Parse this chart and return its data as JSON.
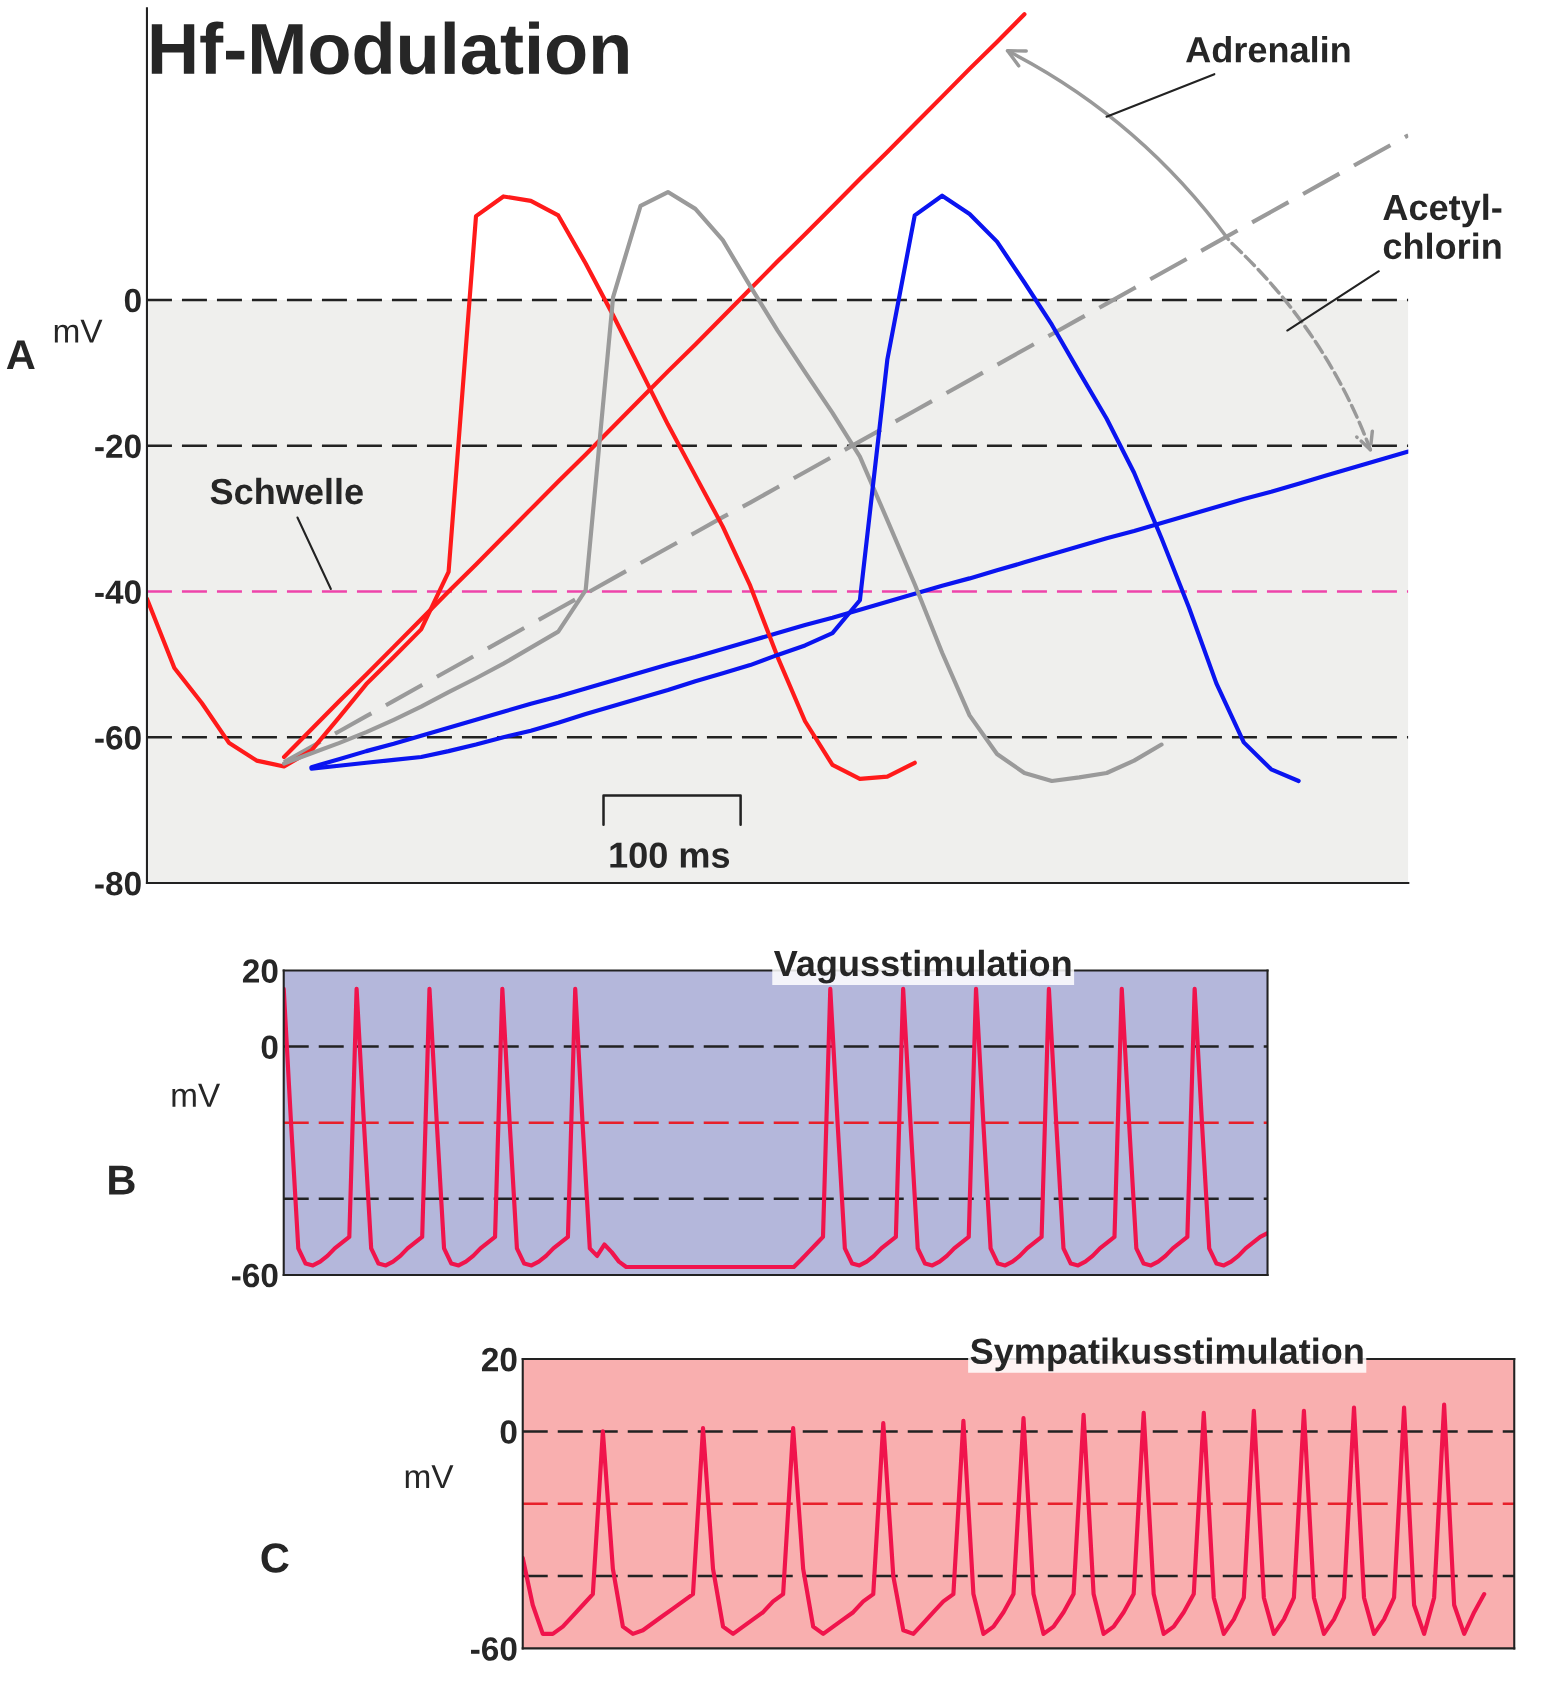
{
  "chart_data": [
    {
      "type": "line",
      "title": "Hf-Modulation",
      "ylabel": "mV",
      "ylim": [
        -80,
        40
      ],
      "yticks": [
        -80,
        -60,
        -40,
        -20,
        0
      ],
      "tick_labels": "y",
      "categories": [
        null,
        null,
        null,
        null,
        null,
        null,
        null,
        null,
        null,
        null,
        null,
        null,
        null,
        null,
        null,
        null,
        null,
        null,
        null,
        null,
        null,
        null,
        null,
        null,
        null,
        null,
        null,
        null,
        null,
        null,
        null,
        null,
        null,
        null,
        null,
        null,
        null,
        null,
        null,
        null,
        null,
        null,
        null,
        null,
        null,
        null,
        null
      ],
      "bands": [
        {
          "axis": "y",
          "from": -80,
          "to": 0,
          "color": "#efefed"
        }
      ],
      "ref_lines": [
        {
          "axis": "y",
          "value": 0,
          "color": "#222222",
          "line_style": "dashed"
        },
        {
          "axis": "y",
          "value": -20,
          "color": "#222222",
          "line_style": "dashed"
        },
        {
          "axis": "y",
          "value": -60,
          "color": "#222222",
          "line_style": "dashed"
        },
        {
          "axis": "y",
          "value": -40,
          "label": "Schwelle",
          "color": "#ee44aa",
          "line_style": "dashed"
        }
      ],
      "annotations": [
        "A",
        "Adrenalin",
        "Acetyl-\nchlorin",
        "100 ms"
      ],
      "series": [
        {
          "color": "#ff1a1a",
          "line_style": "solid",
          "values": [
            null,
            null,
            null,
            null,
            null,
            -62.7,
            -58.9,
            -55.1,
            -51.4,
            -47.6,
            -43.8,
            -40.0,
            -36.3,
            -32.5,
            -28.7,
            -24.9,
            -21.2,
            -17.4,
            -13.6,
            -9.8,
            -6.1,
            -2.3,
            1.5,
            5.3,
            9.0,
            12.8,
            16.6,
            20.3,
            24.1,
            27.9,
            31.7,
            35.4,
            39.2,
            null,
            null,
            null,
            null,
            null,
            null,
            null,
            null,
            null,
            null,
            null,
            null,
            null,
            null
          ]
        },
        {
          "color": "#9a9a9a",
          "line_style": "dashed",
          "values": [
            null,
            null,
            null,
            null,
            null,
            -63.4,
            -61.3,
            -59.2,
            -57.1,
            -55.0,
            -52.9,
            -50.8,
            -48.7,
            -46.6,
            -44.5,
            -42.4,
            -40.3,
            -38.2,
            -36.1,
            -34.0,
            -31.9,
            -29.8,
            -27.8,
            -25.7,
            -23.6,
            -21.5,
            -19.4,
            -17.3,
            -15.2,
            -13.1,
            -11.0,
            -8.9,
            -6.8,
            -4.7,
            -2.6,
            -0.5,
            1.6,
            3.7,
            5.8,
            7.9,
            10.0,
            12.1,
            14.2,
            16.3,
            18.4,
            20.5,
            22.6
          ]
        },
        {
          "color": "#0a14f0",
          "line_style": "solid",
          "values": [
            null,
            null,
            null,
            null,
            null,
            null,
            -64.1,
            -63.0,
            -61.9,
            -60.9,
            -59.8,
            -58.7,
            -57.6,
            -56.5,
            -55.4,
            -54.4,
            -53.3,
            -52.2,
            -51.1,
            -50.0,
            -49.0,
            -47.9,
            -46.8,
            -45.7,
            -44.6,
            -43.6,
            -42.5,
            -41.4,
            -40.3,
            -39.2,
            -38.2,
            -37.1,
            -36.0,
            -34.9,
            -33.8,
            -32.7,
            -31.7,
            -30.6,
            -29.5,
            -28.4,
            -27.3,
            -26.3,
            -25.2,
            -24.1,
            -23.0,
            -21.9,
            -20.8
          ]
        },
        {
          "color": "#ff1a1a",
          "line_style": "solid",
          "values": [
            -41,
            -50.5,
            -55.3,
            -60.8,
            -63.2,
            -64.0,
            -61.8,
            -57.3,
            -52.7,
            -49.0,
            -45.2,
            -37.3,
            11.5,
            14.2,
            13.6,
            11.6,
            5.0,
            -2.1,
            -9.6,
            -17.1,
            -24.1,
            -31.1,
            -39.2,
            -49.0,
            -57.8,
            -63.8,
            -65.7,
            -65.4,
            -63.5,
            null,
            null,
            null,
            null,
            null,
            null,
            null,
            null,
            null,
            null,
            null,
            null,
            null,
            null,
            null,
            null,
            null,
            null
          ]
        },
        {
          "color": "#9a9a9a",
          "line_style": "solid",
          "values": [
            null,
            null,
            null,
            null,
            null,
            -63.6,
            -62.2,
            -60.8,
            -59.3,
            -57.6,
            -55.8,
            -53.8,
            -51.9,
            -49.9,
            -47.7,
            -45.5,
            -39.8,
            0.4,
            12.9,
            14.8,
            12.5,
            8.2,
            1.9,
            -4.2,
            -9.9,
            -15.5,
            -21.5,
            -30.2,
            -39.0,
            -48.4,
            -57.0,
            -62.3,
            -64.9,
            -66.0,
            -65.5,
            -64.9,
            -63.2,
            -61.0,
            null,
            null,
            null,
            null,
            null,
            null,
            null,
            null,
            null
          ]
        },
        {
          "color": "#0a14f0",
          "line_style": "solid",
          "values": [
            null,
            null,
            null,
            null,
            null,
            null,
            -64.3,
            -63.9,
            -63.5,
            -63.1,
            -62.7,
            -61.9,
            -61.0,
            -60.0,
            -59.1,
            -58.0,
            -56.8,
            -55.7,
            -54.6,
            -53.5,
            -52.3,
            -51.2,
            -50.1,
            -48.7,
            -47.4,
            -45.7,
            -41.2,
            -8.2,
            11.6,
            14.3,
            11.8,
            8.0,
            2.4,
            -3.4,
            -9.9,
            -16.3,
            -23.7,
            -32.7,
            -42.2,
            -52.6,
            -60.7,
            -64.4,
            -66.0,
            null,
            null,
            null,
            null
          ]
        }
      ]
    },
    {
      "type": "line",
      "title": "Vagusstimulation",
      "ylabel": "mV",
      "ylim": [
        -60,
        20
      ],
      "yticks": [
        -60,
        0,
        20
      ],
      "tick_labels": "y",
      "categories": [
        null,
        null,
        null,
        null,
        null,
        null,
        null,
        null,
        null,
        null,
        null,
        null,
        null,
        null,
        null,
        null,
        null,
        null,
        null,
        null,
        null,
        null,
        null,
        null,
        null,
        null,
        null,
        null,
        null,
        null,
        null,
        null,
        null,
        null,
        null,
        null,
        null,
        null,
        null,
        null,
        null,
        null,
        null,
        null,
        null,
        null,
        null,
        null,
        null,
        null,
        null,
        null,
        null,
        null,
        null,
        null,
        null,
        null,
        null,
        null,
        null,
        null,
        null,
        null,
        null,
        null,
        null,
        null,
        null,
        null,
        null,
        null,
        null,
        null,
        null,
        null,
        null,
        null,
        null,
        null,
        null,
        null,
        null,
        null,
        null,
        null,
        null,
        null,
        null,
        null,
        null,
        null,
        null,
        null,
        null,
        null,
        null,
        null,
        null,
        null,
        null,
        null,
        null,
        null,
        null,
        null,
        null,
        null,
        null,
        null,
        null,
        null,
        null,
        null,
        null,
        null,
        null,
        null,
        null,
        null,
        null,
        null,
        null,
        null,
        null,
        null,
        null,
        null,
        null,
        null,
        null,
        null,
        null,
        null,
        null,
        null
      ],
      "bands": [
        {
          "axis": "y",
          "from": -60,
          "to": 20,
          "color": "#b4b7db"
        }
      ],
      "ref_lines": [
        {
          "axis": "y",
          "value": 0,
          "color": "#222222",
          "line_style": "dashed"
        },
        {
          "axis": "y",
          "value": -20,
          "color": "#e8202a",
          "line_style": "dashed"
        },
        {
          "axis": "y",
          "value": -40,
          "color": "#222222",
          "line_style": "dashed"
        }
      ],
      "annotations": [
        "B"
      ],
      "series": [
        {
          "color": "#f0144c",
          "line_style": "solid",
          "values": [
            15.2,
            -20,
            -53,
            -57,
            -57.5,
            -56.5,
            -55,
            -53,
            -51.5,
            -50,
            15.2,
            -20,
            -53,
            -57,
            -57.5,
            -56.5,
            -55,
            -53,
            -51.5,
            -50,
            15.2,
            -20,
            -53,
            -57,
            -57.5,
            -56.5,
            -55,
            -53,
            -51.5,
            -50,
            15.2,
            -20,
            -53,
            -57,
            -57.5,
            -56.5,
            -55,
            -53,
            -51.5,
            -50,
            15.2,
            -20,
            -53,
            -55,
            -52,
            -54,
            -56.5,
            -57.9,
            -57.9,
            -57.9,
            -57.9,
            -57.9,
            -57.9,
            -57.9,
            -57.9,
            -57.9,
            -57.9,
            -57.9,
            -57.9,
            -57.9,
            -57.9,
            -57.9,
            -57.9,
            -57.9,
            -57.9,
            -57.9,
            -57.9,
            -57.9,
            -57.9,
            -57.9,
            -57.9,
            -56,
            -54,
            -52,
            -50,
            15.2,
            -20,
            -53,
            -57,
            -57.5,
            -56.5,
            -55,
            -53,
            -51.5,
            -50,
            15.2,
            -20,
            -53,
            -57,
            -57.5,
            -56.5,
            -55,
            -53,
            -51.5,
            -50,
            15.2,
            -20,
            -53,
            -57,
            -57.5,
            -56.5,
            -55,
            -53,
            -51.5,
            -50,
            15.2,
            -20,
            -53,
            -57,
            -57.5,
            -56.5,
            -55,
            -53,
            -51.5,
            -50,
            15.2,
            -20,
            -53,
            -57,
            -57.5,
            -56.5,
            -55,
            -53,
            -51.5,
            -50,
            15.2,
            -20,
            -53,
            -57,
            -57.5,
            -56.5,
            -55,
            -53,
            -51.5,
            -50,
            -49
          ]
        }
      ]
    },
    {
      "type": "line",
      "title": "Sympatikusstimulation",
      "ylabel": "mV",
      "ylim": [
        -60,
        20
      ],
      "yticks": [
        -60,
        0,
        20
      ],
      "tick_labels": "y",
      "categories": [
        null,
        null,
        null,
        null,
        null,
        null,
        null,
        null,
        null,
        null,
        null,
        null,
        null,
        null,
        null,
        null,
        null,
        null,
        null,
        null,
        null,
        null,
        null,
        null,
        null,
        null,
        null,
        null,
        null,
        null,
        null,
        null,
        null,
        null,
        null,
        null,
        null,
        null,
        null,
        null,
        null,
        null,
        null,
        null,
        null,
        null,
        null,
        null,
        null,
        null,
        null,
        null,
        null,
        null,
        null,
        null,
        null,
        null,
        null,
        null,
        null,
        null,
        null,
        null,
        null,
        null,
        null,
        null,
        null,
        null,
        null,
        null,
        null,
        null,
        null,
        null,
        null,
        null,
        null,
        null,
        null,
        null,
        null,
        null,
        null,
        null,
        null,
        null,
        null,
        null,
        null,
        null,
        null,
        null,
        null,
        null,
        null,
        null,
        null,
        null
      ],
      "bands": [
        {
          "axis": "y",
          "from": -60,
          "to": 20,
          "color": "#f9afaf"
        }
      ],
      "ref_lines": [
        {
          "axis": "y",
          "value": 0,
          "color": "#222222",
          "line_style": "dashed"
        },
        {
          "axis": "y",
          "value": -20,
          "color": "#e8202a",
          "line_style": "dashed"
        },
        {
          "axis": "y",
          "value": -40,
          "color": "#222222",
          "line_style": "dashed"
        }
      ],
      "annotations": [
        "C"
      ],
      "series": [
        {
          "color": "#f0144c",
          "line_style": "solid",
          "values": [
            -35,
            -48,
            -56,
            -56,
            -54,
            -51,
            -48,
            -45,
            0,
            -38,
            -54,
            -56,
            -55,
            -53,
            -51,
            -49,
            -47,
            -45,
            0.9,
            -38,
            -54,
            -56,
            -54,
            -52,
            -50,
            -47,
            -45,
            0.9,
            -38,
            -54,
            -56,
            -54,
            -52,
            -50,
            -47,
            -45,
            2.3,
            -40,
            -55,
            -56,
            -53,
            -50,
            -47,
            -45,
            2.9,
            -45,
            -56,
            -54,
            -50,
            -45,
            3.7,
            -45,
            -56,
            -54,
            -50,
            -45,
            4.6,
            -45,
            -56,
            -54,
            -50,
            -45,
            5.1,
            -45,
            -56,
            -54,
            -50,
            -45,
            5.1,
            -46,
            -56,
            -52,
            -46,
            5.7,
            -46,
            -56,
            -52,
            -46,
            5.7,
            -46,
            -56,
            -52,
            -46,
            6.6,
            -46,
            -56,
            -52,
            -46,
            6.6,
            -48,
            -56,
            -46,
            7.4,
            -48,
            -56,
            -50,
            -45,
            null,
            null,
            null
          ]
        }
      ]
    }
  ]
}
